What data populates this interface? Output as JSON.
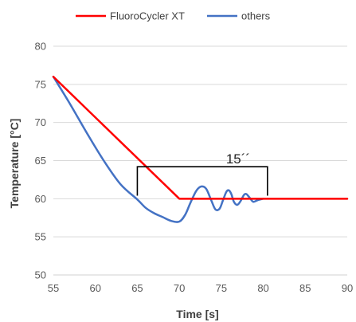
{
  "chart_data": {
    "type": "line",
    "title": "",
    "xlabel": "Time [s]",
    "ylabel": "Temperature [°C]",
    "xlim": [
      55,
      90
    ],
    "ylim": [
      50,
      80
    ],
    "x_ticks": [
      55,
      60,
      65,
      70,
      75,
      80,
      85,
      90
    ],
    "y_ticks": [
      50,
      55,
      60,
      65,
      70,
      75,
      80
    ],
    "x_tick_labels": [
      "55",
      "60",
      "65",
      "70",
      "75",
      "80",
      "85",
      "90"
    ],
    "y_tick_labels": [
      "50",
      "55",
      "60",
      "65",
      "70",
      "75",
      "80"
    ],
    "grid": "horizontal",
    "legend_position": "top",
    "series": [
      {
        "name": "FluoroCycler XT",
        "color": "#ff0000",
        "x": [
          55,
          70,
          90
        ],
        "y": [
          76,
          60,
          60
        ]
      },
      {
        "name": "others",
        "color": "#4472c4",
        "x": [
          55,
          57,
          59,
          61,
          63,
          65,
          66,
          67,
          68,
          69,
          70,
          70.7,
          71.3,
          72,
          72.6,
          73.2,
          73.8,
          74.3,
          74.8,
          75.2,
          75.6,
          75.9,
          76.2,
          76.5,
          76.9,
          77.3,
          77.7,
          78,
          78.4,
          78.8,
          79.3,
          80
        ],
        "y": [
          76,
          72.4,
          68.6,
          65,
          61.9,
          59.9,
          58.8,
          58.1,
          57.6,
          57.1,
          57,
          57.9,
          59.4,
          61,
          61.6,
          61.3,
          59.8,
          58.6,
          58.7,
          59.8,
          60.9,
          61.1,
          60.6,
          59.6,
          59.2,
          59.7,
          60.5,
          60.6,
          60.1,
          59.6,
          59.8,
          60
        ]
      }
    ],
    "annotations": [
      {
        "text": "15´´",
        "x_start": 65,
        "x_end": 80.5,
        "y_top": 64.2,
        "y_bottom": 60.4
      }
    ]
  }
}
